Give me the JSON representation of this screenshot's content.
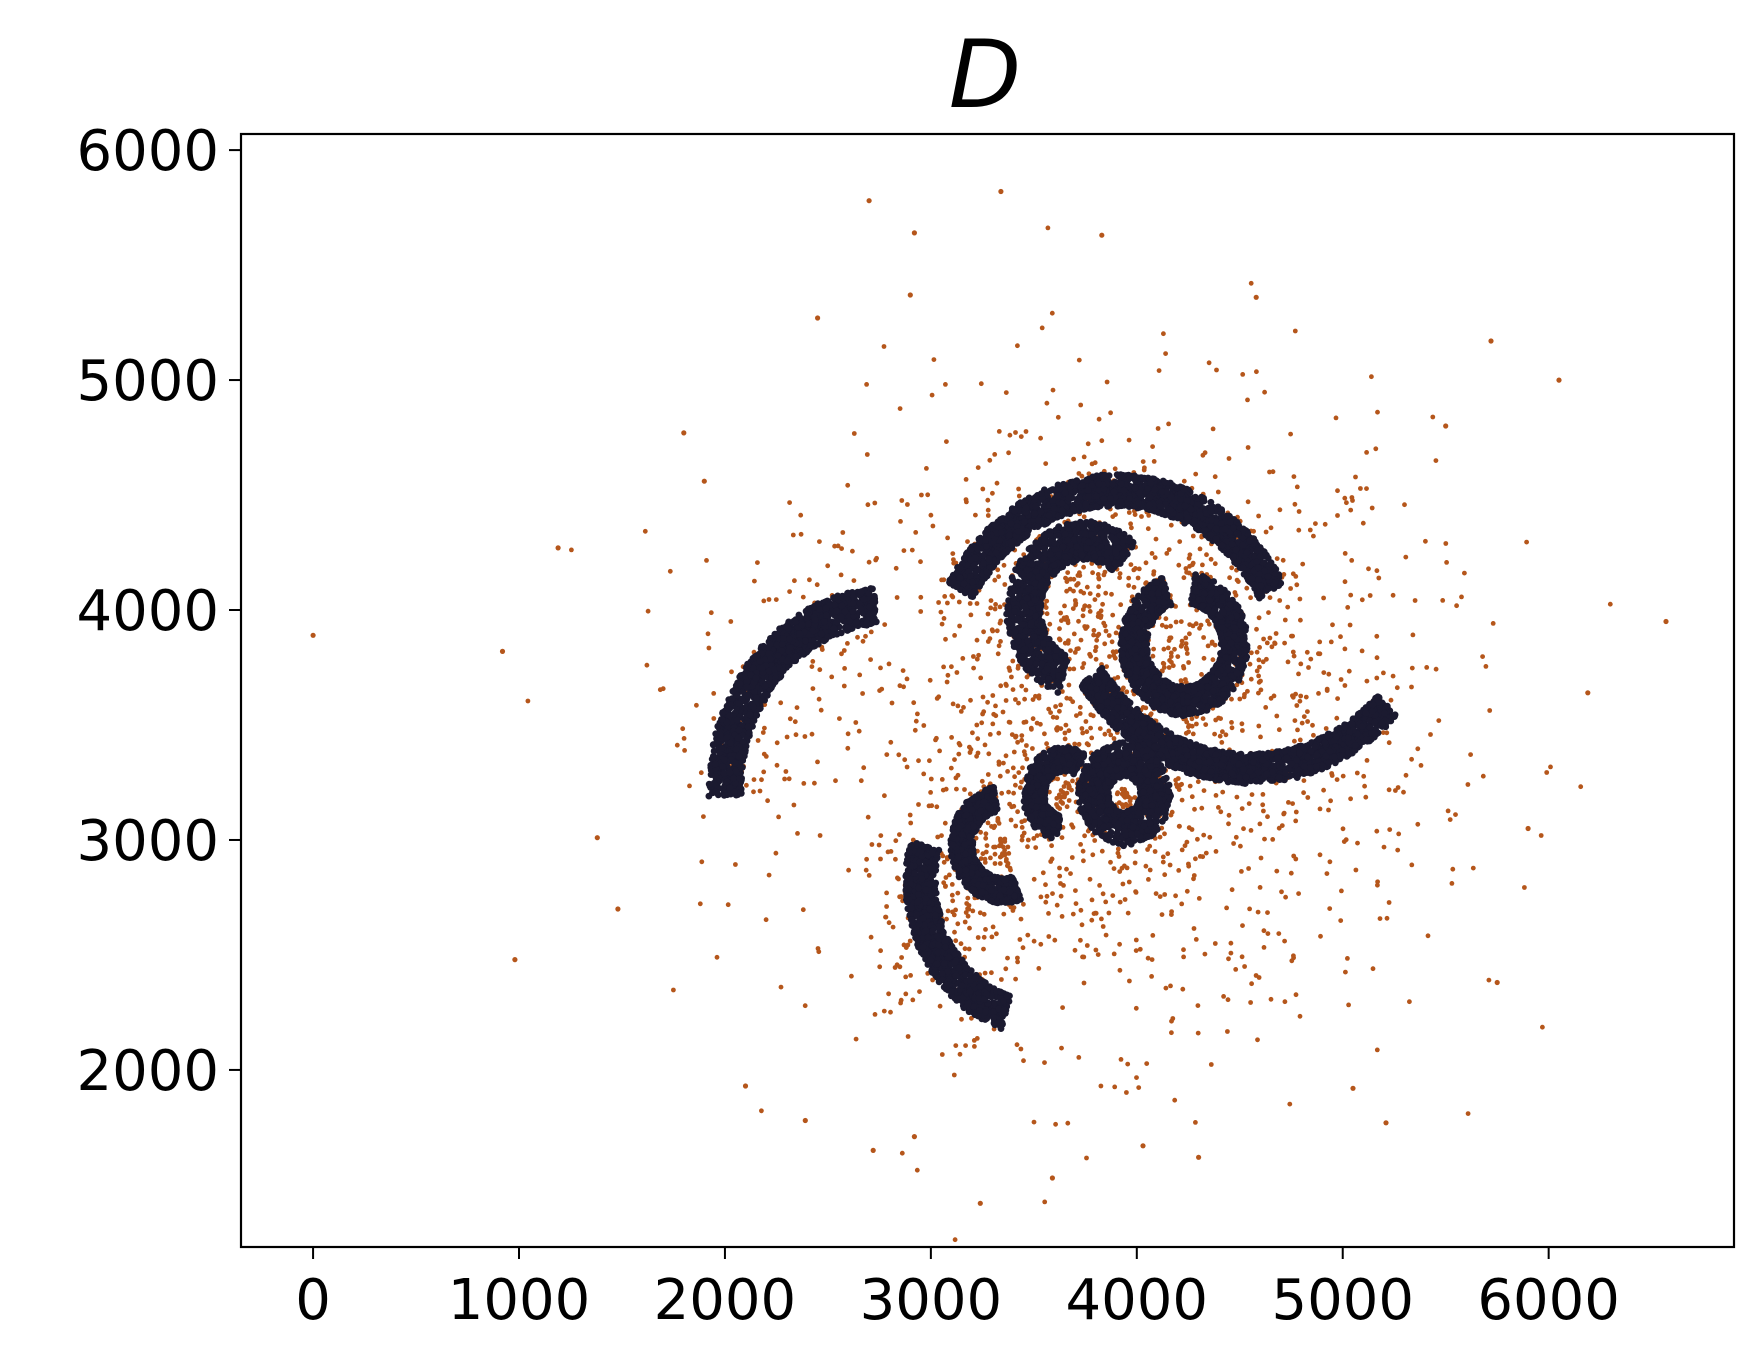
{
  "chart_data": {
    "type": "scatter",
    "title": "D",
    "xlabel": "",
    "ylabel": "",
    "xlim": [
      -350,
      6900
    ],
    "ylim": [
      1230,
      6070
    ],
    "xticks": [
      "0",
      "1000",
      "2000",
      "3000",
      "4000",
      "5000",
      "6000"
    ],
    "yticks": [
      "2000",
      "3000",
      "4000",
      "5000",
      "6000"
    ],
    "grid": false,
    "colors": {
      "arcs": "#1b1a30",
      "noise": "#b5561b"
    },
    "arcs": [
      {
        "cx": 2800,
        "cy": 3220,
        "r": 800,
        "start_deg": 95,
        "end_deg": 182,
        "width": 80
      },
      {
        "cx": 3900,
        "cy": 3650,
        "r": 870,
        "start_deg": 30,
        "end_deg": 150,
        "width": 70
      },
      {
        "cx": 3750,
        "cy": 4000,
        "r": 300,
        "start_deg": 50,
        "end_deg": 250,
        "width": 85
      },
      {
        "cx": 4230,
        "cy": 3850,
        "r": 245,
        "start_deg": 110,
        "end_deg": 440,
        "width": 65
      },
      {
        "cx": 4550,
        "cy": 4250,
        "r": 940,
        "start_deg": 215,
        "end_deg": 315,
        "width": 65
      },
      {
        "cx": 3940,
        "cy": 3200,
        "r": 150,
        "start_deg": 0,
        "end_deg": 360,
        "width": 75
      },
      {
        "cx": 3650,
        "cy": 3200,
        "r": 150,
        "start_deg": 60,
        "end_deg": 260,
        "width": 55
      },
      {
        "cx": 3350,
        "cy": 2980,
        "r": 200,
        "start_deg": 100,
        "end_deg": 290,
        "width": 55
      },
      {
        "cx": 3550,
        "cy": 2820,
        "r": 600,
        "start_deg": 165,
        "end_deg": 252,
        "width": 75
      }
    ],
    "noise": {
      "core_count": 1500,
      "core_center": [
        3900,
        3500
      ],
      "core_sd": [
        760,
        660
      ],
      "arc_halo_count": 900,
      "outliers": [
        [
          0,
          3890
        ],
        [
          920,
          3820
        ],
        [
          980,
          2480
        ],
        [
          1190,
          4270
        ],
        [
          1480,
          2700
        ],
        [
          1380,
          3010
        ],
        [
          2700,
          5780
        ],
        [
          2920,
          5640
        ],
        [
          3340,
          5820
        ],
        [
          3830,
          5630
        ],
        [
          2450,
          5270
        ],
        [
          2900,
          5370
        ],
        [
          6570,
          3950
        ],
        [
          6050,
          5000
        ],
        [
          5720,
          5170
        ],
        [
          6190,
          3640
        ],
        [
          5900,
          3050
        ],
        [
          5750,
          2380
        ],
        [
          5210,
          1770
        ],
        [
          4300,
          1620
        ],
        [
          3590,
          1530
        ],
        [
          3240,
          1420
        ],
        [
          2720,
          1650
        ],
        [
          2390,
          1780
        ],
        [
          2100,
          1930
        ],
        [
          2920,
          1710
        ],
        [
          4030,
          1670
        ],
        [
          5050,
          1920
        ],
        [
          1800,
          4770
        ],
        [
          1900,
          4560
        ],
        [
          5500,
          4800
        ],
        [
          4580,
          5360
        ]
      ]
    }
  }
}
